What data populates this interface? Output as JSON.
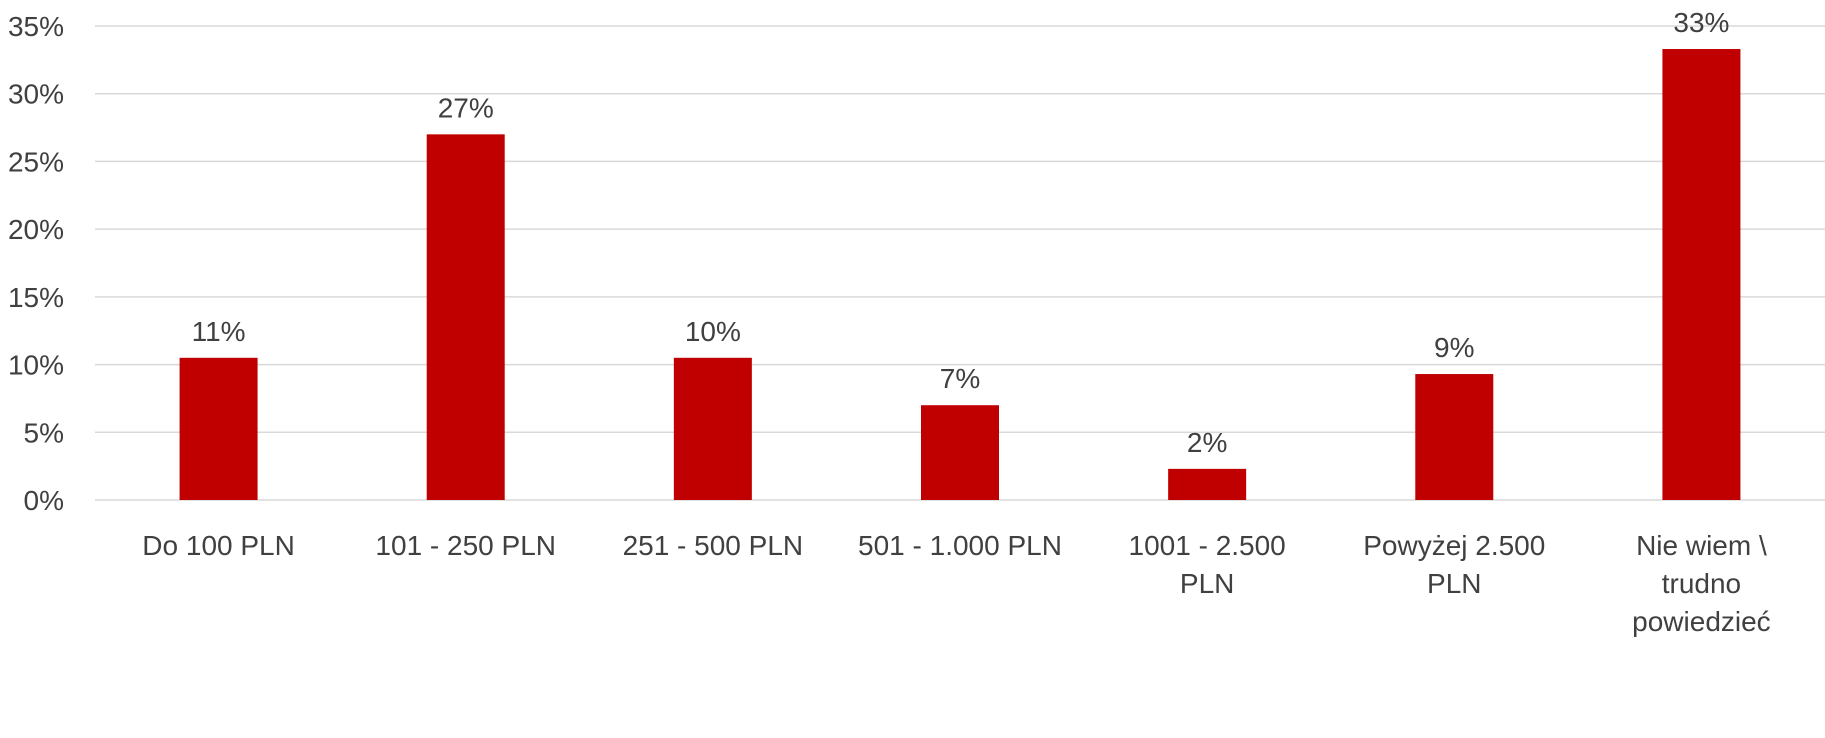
{
  "chart_data": {
    "type": "bar",
    "categories": [
      "Do 100 PLN",
      "101 - 250 PLN",
      "251 - 500 PLN",
      "501 - 1.000 PLN",
      "1001 - 2.500 PLN",
      "Powyżej 2.500 PLN",
      "Nie wiem \\ trudno powiedzieć"
    ],
    "category_lines": [
      [
        "Do 100 PLN"
      ],
      [
        "101 - 250 PLN"
      ],
      [
        "251 - 500 PLN"
      ],
      [
        "501 - 1.000 PLN"
      ],
      [
        "1001 - 2.500",
        "PLN"
      ],
      [
        "Powyżej 2.500",
        "PLN"
      ],
      [
        "Nie wiem \\",
        "trudno",
        "powiedzieć"
      ]
    ],
    "values": [
      10.5,
      27,
      10.5,
      7,
      2.3,
      9.3,
      33.3
    ],
    "data_labels": [
      "11%",
      "27%",
      "10%",
      "7%",
      "2%",
      "9%",
      "33%"
    ],
    "yticks": [
      0,
      5,
      10,
      15,
      20,
      25,
      30,
      35
    ],
    "ytick_labels": [
      "0%",
      "5%",
      "10%",
      "15%",
      "20%",
      "25%",
      "30%",
      "35%"
    ],
    "ylim": [
      0,
      35
    ],
    "grid": true,
    "legend": "none",
    "title": "",
    "xlabel": "",
    "ylabel": "",
    "bar_color": "#c00000"
  }
}
